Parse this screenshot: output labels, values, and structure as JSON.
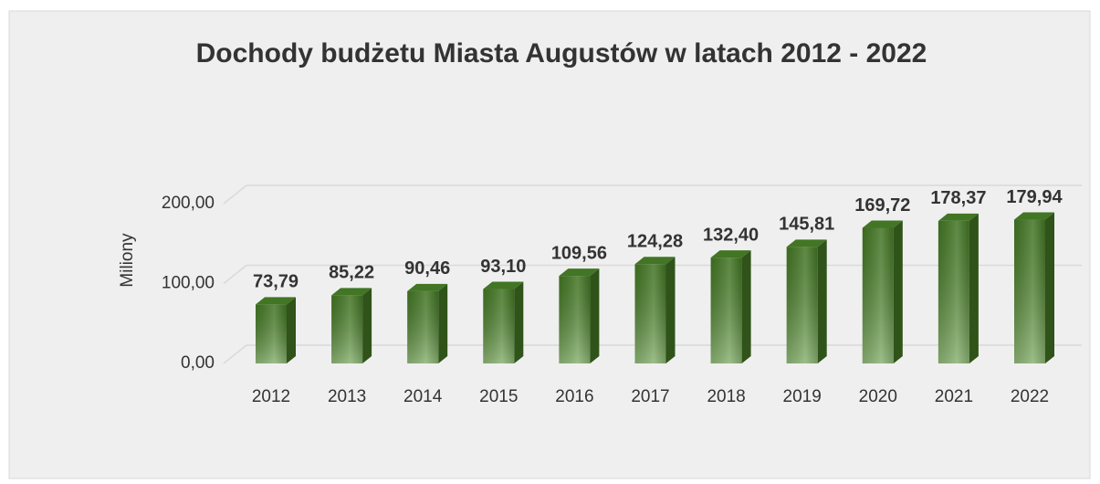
{
  "chart_data": {
    "type": "bar3d",
    "title": "Dochody budżetu Miasta Augustów w latach 2012 - 2022",
    "y_label": "Miliony",
    "categories": [
      "2012",
      "2013",
      "2014",
      "2015",
      "2016",
      "2017",
      "2018",
      "2019",
      "2020",
      "2021",
      "2022"
    ],
    "values": [
      73.79,
      85.22,
      90.46,
      93.1,
      109.56,
      124.28,
      132.4,
      145.81,
      169.72,
      178.37,
      179.94
    ],
    "value_labels": [
      "73,79",
      "85,22",
      "90,46",
      "93,10",
      "109,56",
      "124,28",
      "132,40",
      "145,81",
      "169,72",
      "178,37",
      "179,94"
    ],
    "color": "#4e8a2a",
    "ylim": [
      0,
      200
    ],
    "yticks": [
      {
        "value": 0,
        "label": "0,00"
      },
      {
        "value": 100,
        "label": "100,00"
      },
      {
        "value": 200,
        "label": "200,00"
      }
    ],
    "grid": true
  }
}
